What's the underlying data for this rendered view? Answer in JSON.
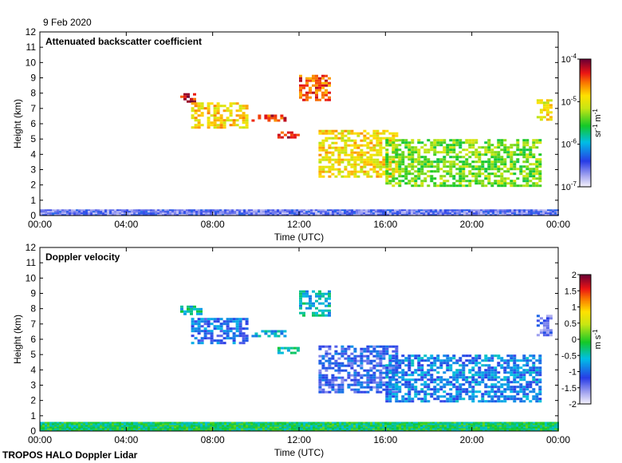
{
  "date_label": "9 Feb 2020",
  "footer_label": "TROPOS HALO Doppler Lidar",
  "chart_data": [
    {
      "type": "heatmap",
      "title": "Attenuated backscatter coefficient",
      "xlabel": "Time (UTC)",
      "ylabel": "Height (km)",
      "xlim": [
        0,
        24
      ],
      "ylim": [
        0,
        12
      ],
      "x_ticks": [
        "00:00",
        "04:00",
        "08:00",
        "12:00",
        "16:00",
        "20:00",
        "00:00"
      ],
      "y_ticks": [
        "0",
        "1",
        "2",
        "3",
        "4",
        "5",
        "6",
        "7",
        "8",
        "9",
        "10",
        "11",
        "12"
      ],
      "colorbar": {
        "scale": "log",
        "range": [
          1e-07,
          0.0001
        ],
        "tick_mantissa": [
          "10",
          "10",
          "10",
          "10"
        ],
        "tick_exponents": [
          "-7",
          "-6",
          "-5",
          "-4"
        ],
        "unit_parts": [
          "sr",
          "-1",
          " m",
          "-1"
        ]
      },
      "features": [
        {
          "kind": "boundary_layer",
          "t0": 0,
          "t1": 24,
          "h0": 0,
          "h1": 0.4,
          "level": 0.15
        },
        {
          "kind": "cloud",
          "t0": 6.5,
          "t1": 7.2,
          "h0": 7.5,
          "h1": 8.0,
          "level": 0.92
        },
        {
          "kind": "cloud",
          "t0": 7.0,
          "t1": 9.6,
          "h0": 5.8,
          "h1": 7.4,
          "level": 0.72
        },
        {
          "kind": "cloud",
          "t0": 9.8,
          "t1": 11.3,
          "h0": 6.2,
          "h1": 6.6,
          "level": 0.88
        },
        {
          "kind": "cloud",
          "t0": 11.0,
          "t1": 12.0,
          "h0": 5.1,
          "h1": 5.5,
          "level": 0.9
        },
        {
          "kind": "cloud",
          "t0": 12.0,
          "t1": 13.4,
          "h0": 7.6,
          "h1": 9.2,
          "level": 0.85
        },
        {
          "kind": "cloud",
          "t0": 12.9,
          "t1": 16.5,
          "h0": 2.6,
          "h1": 5.6,
          "level": 0.7
        },
        {
          "kind": "cloud",
          "t0": 16.0,
          "t1": 23.2,
          "h0": 2.0,
          "h1": 5.0,
          "level": 0.55
        },
        {
          "kind": "cloud",
          "t0": 23.0,
          "t1": 23.6,
          "h0": 6.2,
          "h1": 7.6,
          "level": 0.7
        }
      ]
    },
    {
      "type": "heatmap",
      "title": "Doppler velocity",
      "xlabel": "Time (UTC)",
      "ylabel": "Height (km)",
      "xlim": [
        0,
        24
      ],
      "ylim": [
        0,
        12
      ],
      "x_ticks": [
        "00:00",
        "04:00",
        "08:00",
        "12:00",
        "16:00",
        "20:00",
        "00:00"
      ],
      "y_ticks": [
        "0",
        "1",
        "2",
        "3",
        "4",
        "5",
        "6",
        "7",
        "8",
        "9",
        "10",
        "11",
        "12"
      ],
      "colorbar": {
        "scale": "linear",
        "range": [
          -2,
          2
        ],
        "ticks": [
          "2",
          "1.5",
          "1",
          "0.5",
          "0",
          "-0.5",
          "-1",
          "-1.5",
          "-2"
        ],
        "unit_parts": [
          "m s",
          "-1"
        ]
      },
      "features": [
        {
          "kind": "boundary_layer",
          "t0": 0,
          "t1": 24,
          "h0": 0,
          "h1": 0.6,
          "level": 0.45
        },
        {
          "kind": "cloud",
          "t0": 6.5,
          "t1": 7.4,
          "h0": 7.6,
          "h1": 8.2,
          "level": 0.38
        },
        {
          "kind": "cloud",
          "t0": 7.0,
          "t1": 9.6,
          "h0": 5.7,
          "h1": 7.4,
          "level": 0.25
        },
        {
          "kind": "cloud",
          "t0": 9.8,
          "t1": 11.3,
          "h0": 6.2,
          "h1": 6.6,
          "level": 0.33
        },
        {
          "kind": "cloud",
          "t0": 11.0,
          "t1": 12.0,
          "h0": 5.1,
          "h1": 5.5,
          "level": 0.38
        },
        {
          "kind": "cloud",
          "t0": 12.0,
          "t1": 13.4,
          "h0": 7.6,
          "h1": 9.2,
          "level": 0.36
        },
        {
          "kind": "cloud",
          "t0": 12.9,
          "t1": 16.5,
          "h0": 2.6,
          "h1": 5.6,
          "level": 0.2
        },
        {
          "kind": "cloud",
          "t0": 16.0,
          "t1": 23.2,
          "h0": 2.0,
          "h1": 5.0,
          "level": 0.28
        },
        {
          "kind": "cloud",
          "t0": 23.0,
          "t1": 23.6,
          "h0": 6.2,
          "h1": 7.6,
          "level": 0.15
        }
      ]
    }
  ]
}
